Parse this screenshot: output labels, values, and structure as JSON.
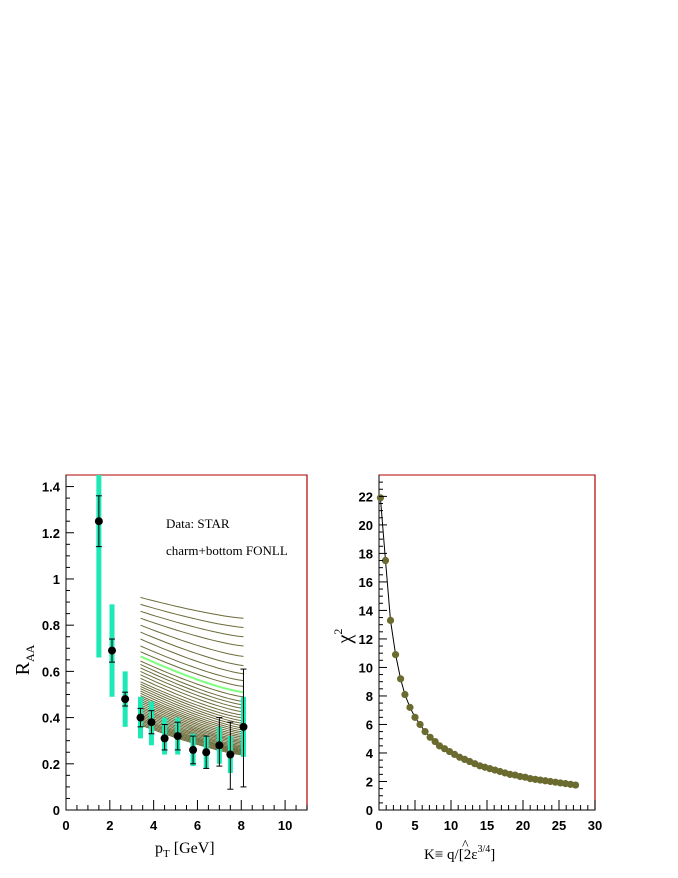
{
  "chart_data": [
    {
      "type": "scatter",
      "xlabel_main": "p",
      "xlabel_sub": "T",
      "xlabel_unit": "[GeV]",
      "ylabel_main": "R",
      "ylabel_sub": "AA",
      "xlim": [
        0,
        11
      ],
      "ylim": [
        0,
        1.45
      ],
      "xticks": [
        0,
        2,
        4,
        6,
        8,
        10
      ],
      "yticks": [
        0,
        0.2,
        0.4,
        0.6,
        0.8,
        1,
        1.2,
        1.4
      ],
      "xtick_labels": [
        "0",
        "2",
        "4",
        "6",
        "8",
        "10"
      ],
      "ytick_labels": [
        "0",
        "0.2",
        "0.4",
        "0.6",
        "0.8",
        "1",
        "1.2",
        "1.4"
      ],
      "annotations": [
        "Data: STAR",
        "charm+bottom FONLL"
      ],
      "data_points": [
        {
          "x": 1.5,
          "y": 1.25,
          "err_lo": 0.11,
          "err_hi": 0.11,
          "sys_lo": 0.59,
          "sys_hi": 0.25
        },
        {
          "x": 2.1,
          "y": 0.69,
          "err_lo": 0.05,
          "err_hi": 0.05,
          "sys_lo": 0.2,
          "sys_hi": 0.2
        },
        {
          "x": 2.7,
          "y": 0.48,
          "err_lo": 0.03,
          "err_hi": 0.03,
          "sys_lo": 0.12,
          "sys_hi": 0.12
        },
        {
          "x": 3.4,
          "y": 0.4,
          "err_lo": 0.04,
          "err_hi": 0.04,
          "sys_lo": 0.09,
          "sys_hi": 0.09
        },
        {
          "x": 3.9,
          "y": 0.38,
          "err_lo": 0.05,
          "err_hi": 0.05,
          "sys_lo": 0.1,
          "sys_hi": 0.09
        },
        {
          "x": 4.5,
          "y": 0.31,
          "err_lo": 0.05,
          "err_hi": 0.06,
          "sys_lo": 0.07,
          "sys_hi": 0.09
        },
        {
          "x": 5.1,
          "y": 0.32,
          "err_lo": 0.06,
          "err_hi": 0.06,
          "sys_lo": 0.08,
          "sys_hi": 0.08
        },
        {
          "x": 5.8,
          "y": 0.26,
          "err_lo": 0.06,
          "err_hi": 0.06,
          "sys_lo": 0.07,
          "sys_hi": 0.07
        },
        {
          "x": 6.4,
          "y": 0.25,
          "err_lo": 0.07,
          "err_hi": 0.07,
          "sys_lo": 0.07,
          "sys_hi": 0.07
        },
        {
          "x": 7.0,
          "y": 0.28,
          "err_lo": 0.09,
          "err_hi": 0.12,
          "sys_lo": 0.08,
          "sys_hi": 0.08
        },
        {
          "x": 7.5,
          "y": 0.24,
          "err_lo": 0.15,
          "err_hi": 0.14,
          "sys_lo": 0.08,
          "sys_hi": 0.08
        },
        {
          "x": 8.1,
          "y": 0.36,
          "err_lo": 0.26,
          "err_hi": 0.25,
          "sys_lo": 0.13,
          "sys_hi": 0.13
        }
      ],
      "model_curves": {
        "x_range": [
          3.4,
          8.1
        ],
        "start_values": [
          0.92,
          0.89,
          0.86,
          0.83,
          0.8,
          0.77,
          0.74,
          0.71,
          0.685,
          0.665,
          0.645,
          0.63,
          0.615,
          0.6,
          0.585,
          0.57,
          0.555,
          0.545,
          0.535,
          0.525,
          0.515,
          0.505,
          0.495,
          0.487,
          0.479,
          0.471,
          0.463,
          0.455,
          0.447,
          0.44,
          0.433,
          0.426,
          0.419,
          0.412,
          0.405,
          0.398,
          0.392,
          0.386,
          0.38,
          0.374,
          0.368
        ],
        "end_values": [
          0.83,
          0.79,
          0.75,
          0.71,
          0.665,
          0.625,
          0.59,
          0.56,
          0.535,
          0.51,
          0.49,
          0.47,
          0.455,
          0.44,
          0.425,
          0.41,
          0.398,
          0.386,
          0.375,
          0.365,
          0.355,
          0.346,
          0.338,
          0.33,
          0.322,
          0.315,
          0.308,
          0.301,
          0.295,
          0.289,
          0.283,
          0.277,
          0.272,
          0.267,
          0.262,
          0.258,
          0.254,
          0.25,
          0.246,
          0.242,
          0.238
        ],
        "highlight_index": 9,
        "color": "#6b6b3a",
        "highlight_color": "#7fff7f"
      },
      "colors": {
        "sys_band": "#1de9b6",
        "marker": "#000000",
        "frame_right": "#b00000"
      }
    },
    {
      "type": "line",
      "xlabel_text": "K≡ ",
      "xlabel_qhat": "q",
      "xlabel_rest": "/[2ε",
      "xlabel_sup": "3/4",
      "xlabel_close": "]",
      "ylabel_main": "χ",
      "ylabel_sup": "2",
      "xlim": [
        0,
        30
      ],
      "ylim": [
        0,
        23.5
      ],
      "xticks": [
        0,
        5,
        10,
        15,
        20,
        25,
        30
      ],
      "yticks": [
        0,
        2,
        4,
        6,
        8,
        10,
        12,
        14,
        16,
        18,
        20,
        22
      ],
      "xtick_labels": [
        "0",
        "5",
        "10",
        "15",
        "20",
        "25",
        "30"
      ],
      "ytick_labels": [
        "0",
        "2",
        "4",
        "6",
        "8",
        "10",
        "12",
        "14",
        "16",
        "18",
        "20",
        "22"
      ],
      "x": [
        0.2,
        0.9,
        1.6,
        2.3,
        3.0,
        3.6,
        4.3,
        5.0,
        5.7,
        6.4,
        7.1,
        7.8,
        8.4,
        9.1,
        9.8,
        10.5,
        11.2,
        11.9,
        12.6,
        13.3,
        14.0,
        14.7,
        15.4,
        16.1,
        16.8,
        17.5,
        18.2,
        18.9,
        19.6,
        20.3,
        21.0,
        21.7,
        22.4,
        23.1,
        23.8,
        24.5,
        25.2,
        25.9,
        26.6,
        27.3
      ],
      "y": [
        21.9,
        17.5,
        13.3,
        10.9,
        9.2,
        8.1,
        7.2,
        6.5,
        6.0,
        5.5,
        5.1,
        4.8,
        4.5,
        4.3,
        4.1,
        3.9,
        3.7,
        3.55,
        3.4,
        3.25,
        3.1,
        3.0,
        2.9,
        2.8,
        2.7,
        2.6,
        2.5,
        2.45,
        2.35,
        2.3,
        2.2,
        2.15,
        2.1,
        2.05,
        2.0,
        1.95,
        1.9,
        1.85,
        1.8,
        1.75
      ],
      "colors": {
        "marker": "#6b6b30",
        "line": "#000000",
        "frame_right": "#b00000"
      }
    }
  ]
}
